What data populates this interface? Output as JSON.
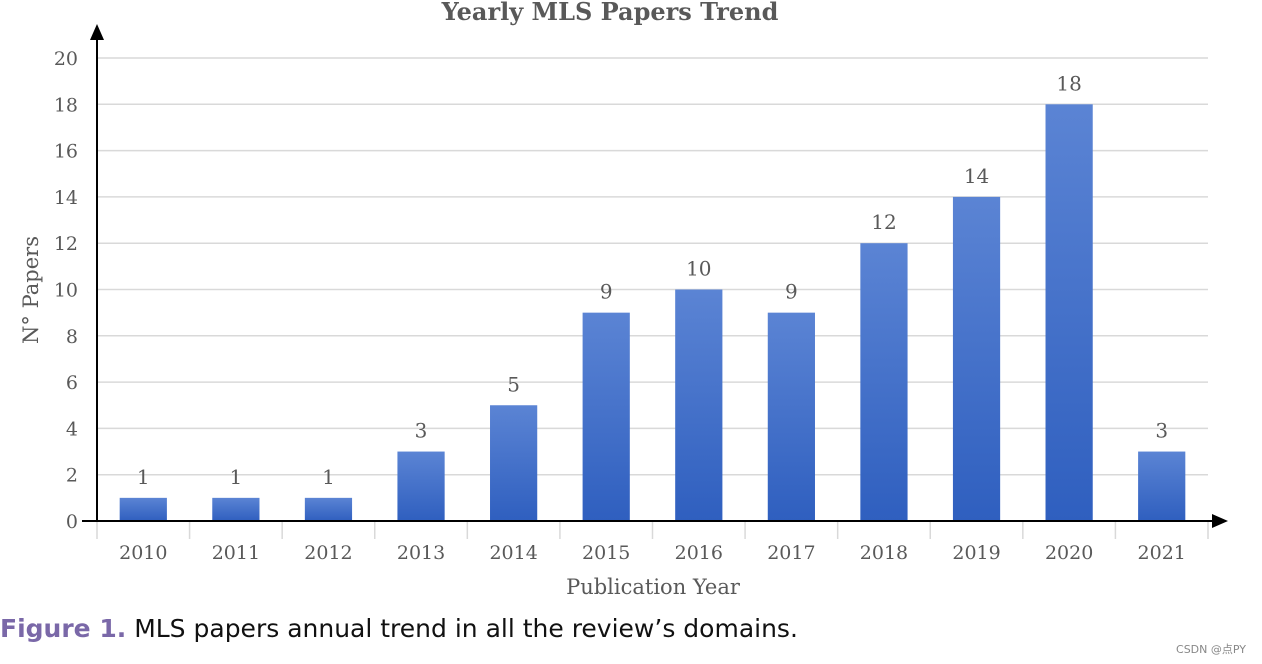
{
  "chart_data": {
    "type": "bar",
    "title": "Yearly MLS Papers Trend",
    "xlabel": "Publication Year",
    "ylabel": "N° Papers",
    "categories": [
      "2010",
      "2011",
      "2012",
      "2013",
      "2014",
      "2015",
      "2016",
      "2017",
      "2018",
      "2019",
      "2020",
      "2021"
    ],
    "values": [
      1,
      1,
      1,
      3,
      5,
      9,
      10,
      9,
      12,
      14,
      18,
      3
    ],
    "ylim": [
      0,
      20
    ],
    "yticks": [
      0,
      2,
      4,
      6,
      8,
      10,
      12,
      14,
      16,
      18,
      20
    ],
    "grid": true,
    "bar_color": "#4472c4"
  },
  "caption": {
    "label": "Figure 1.",
    "text": "MLS papers annual trend in all the review’s domains."
  },
  "watermark": "CSDN @点PY"
}
